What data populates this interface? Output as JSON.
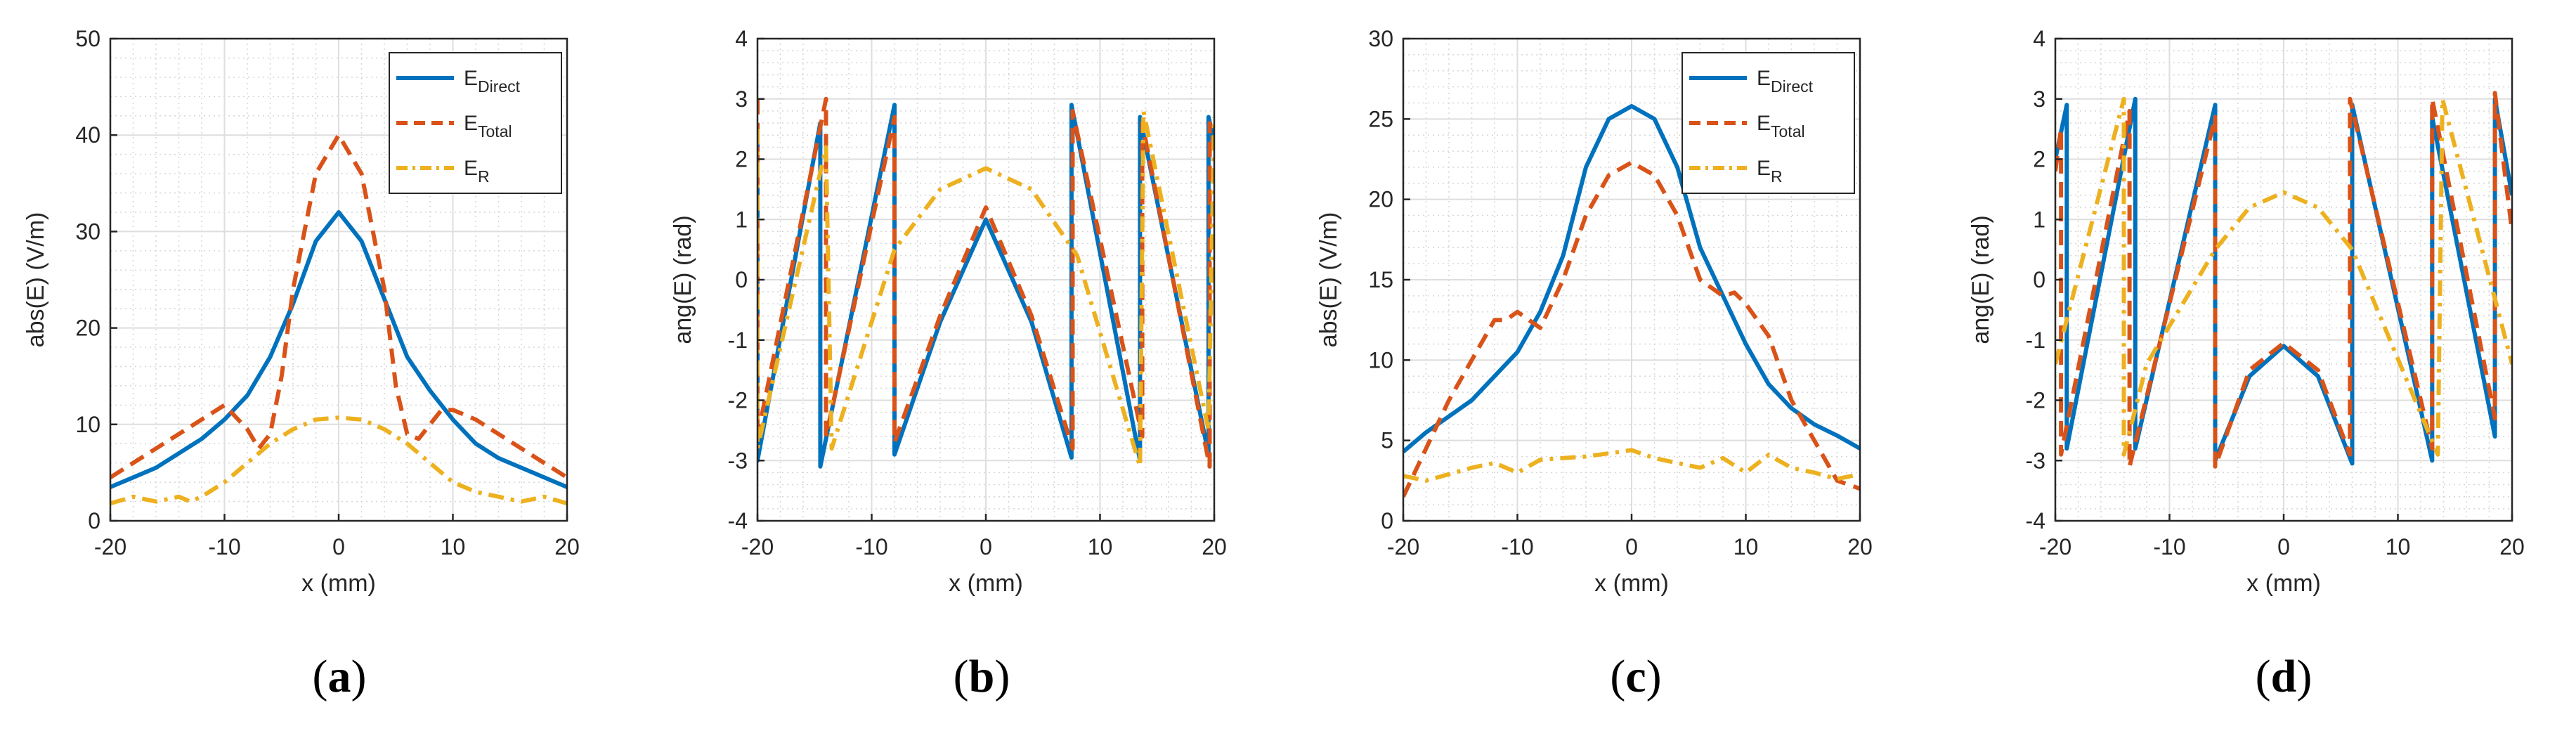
{
  "colors": {
    "direct": "#0072BD",
    "total": "#D95319",
    "r": "#EDB120"
  },
  "panel_labels": [
    "a",
    "b",
    "c",
    "d"
  ],
  "chart_data": [
    {
      "type": "line",
      "panel": "a",
      "xlabel": "x (mm)",
      "ylabel": "abs(E) (V/m)",
      "xlim": [
        -20,
        20
      ],
      "ylim": [
        0,
        50
      ],
      "xticks": [
        -20,
        -10,
        0,
        10,
        20
      ],
      "yticks": [
        0,
        10,
        20,
        30,
        40,
        50
      ],
      "grid": true,
      "minor_grid": true,
      "legend": {
        "show": true,
        "placement": "top-right"
      },
      "series": [
        {
          "name": "E",
          "sub": "Direct",
          "style": "solid",
          "x": [
            -20,
            -18,
            -16,
            -14,
            -12,
            -10,
            -8,
            -6,
            -4,
            -2,
            0,
            2,
            4,
            6,
            8,
            10,
            12,
            14,
            16,
            18,
            20
          ],
          "y": [
            3.5,
            4.5,
            5.5,
            7,
            8.5,
            10.5,
            13,
            17,
            22.5,
            29,
            32,
            29,
            23,
            17,
            13.5,
            10.5,
            8,
            6.5,
            5.5,
            4.5,
            3.5
          ]
        },
        {
          "name": "E",
          "sub": "Total",
          "style": "dashed",
          "x": [
            -20,
            -18,
            -16,
            -14,
            -12,
            -10,
            -8,
            -7,
            -6,
            -5,
            -4,
            -2,
            0,
            2,
            4,
            5,
            6,
            7,
            8,
            9,
            10,
            12,
            14,
            16,
            18,
            20
          ],
          "y": [
            4.5,
            6,
            7.5,
            9,
            10.5,
            12,
            9.5,
            7.5,
            9,
            15,
            24,
            36,
            40,
            36,
            24,
            14,
            9,
            8.5,
            10,
            11.5,
            11.5,
            10.5,
            9,
            7.5,
            6,
            4.5
          ]
        },
        {
          "name": "E",
          "sub": "R",
          "style": "dashdot",
          "x": [
            -20,
            -18,
            -16,
            -14,
            -13,
            -12,
            -10,
            -8,
            -6,
            -4,
            -2,
            0,
            2,
            4,
            6,
            8,
            10,
            12,
            14,
            16,
            18,
            20
          ],
          "y": [
            1.8,
            2.5,
            2,
            2.5,
            2,
            2.5,
            4,
            6,
            8,
            9.5,
            10.5,
            10.7,
            10.5,
            9.5,
            8,
            6,
            4,
            3,
            2.5,
            2,
            2.5,
            1.8
          ]
        }
      ]
    },
    {
      "type": "line",
      "panel": "b",
      "xlabel": "x (mm)",
      "ylabel": "ang(E) (rad)",
      "xlim": [
        -20,
        20
      ],
      "ylim": [
        -4,
        4
      ],
      "xticks": [
        -20,
        -10,
        0,
        10,
        20
      ],
      "yticks": [
        -4,
        -3,
        -2,
        -1,
        0,
        1,
        2,
        3,
        4
      ],
      "grid": true,
      "minor_grid": true,
      "legend": {
        "show": false
      },
      "series": [
        {
          "name": "E",
          "sub": "Direct",
          "style": "solid",
          "x": [
            -20,
            -20,
            -14.5,
            -14.5,
            -8,
            -8,
            -4,
            0,
            4,
            7.5,
            7.5,
            13.5,
            13.5,
            19.5,
            19.5,
            20
          ],
          "y": [
            2.6,
            -3.0,
            2.6,
            -3.1,
            2.9,
            -2.9,
            -0.7,
            1.0,
            -0.7,
            -2.95,
            2.9,
            -3.0,
            2.7,
            -2.9,
            2.7,
            2.3
          ]
        },
        {
          "name": "E",
          "sub": "Total",
          "style": "dashed",
          "x": [
            -20,
            -20,
            -14,
            -14,
            -8,
            -8,
            -4,
            0,
            4,
            7.6,
            7.6,
            13.7,
            13.7,
            19.6,
            19.6,
            20
          ],
          "y": [
            3.0,
            -2.6,
            3.0,
            -2.6,
            2.7,
            -2.7,
            -0.6,
            1.2,
            -0.6,
            -2.8,
            2.8,
            -2.6,
            2.6,
            -3.1,
            2.6,
            2.2
          ]
        },
        {
          "name": "E",
          "sub": "R",
          "style": "dashdot",
          "x": [
            -20,
            -20,
            -14,
            -13.5,
            -8,
            -4,
            0,
            4,
            8,
            13.5,
            13.8,
            19.5,
            20
          ],
          "y": [
            2.5,
            -2.8,
            2.2,
            -2.8,
            0.5,
            1.5,
            1.85,
            1.5,
            0.4,
            -3.1,
            2.8,
            -2.5,
            2.7
          ]
        }
      ]
    },
    {
      "type": "line",
      "panel": "c",
      "xlabel": "x (mm)",
      "ylabel": "abs(E) (V/m)",
      "xlim": [
        -20,
        20
      ],
      "ylim": [
        0,
        30
      ],
      "xticks": [
        -20,
        -10,
        0,
        10,
        20
      ],
      "yticks": [
        0,
        5,
        10,
        15,
        20,
        25,
        30
      ],
      "grid": true,
      "minor_grid": true,
      "legend": {
        "show": true,
        "placement": "top-right"
      },
      "series": [
        {
          "name": "E",
          "sub": "Direct",
          "style": "solid",
          "x": [
            -20,
            -18,
            -16,
            -14,
            -12,
            -10,
            -8,
            -6,
            -4,
            -2,
            0,
            2,
            4,
            6,
            8,
            10,
            12,
            14,
            16,
            18,
            20
          ],
          "y": [
            4.3,
            5.5,
            6.5,
            7.5,
            9,
            10.5,
            13,
            16.5,
            22,
            25,
            25.8,
            25,
            22,
            17,
            14,
            11,
            8.5,
            7,
            6,
            5.3,
            4.5
          ]
        },
        {
          "name": "E",
          "sub": "Total",
          "style": "dashed",
          "x": [
            -20,
            -18,
            -16,
            -14,
            -12,
            -11,
            -10,
            -9,
            -8,
            -6,
            -4,
            -2,
            0,
            2,
            4,
            6,
            8,
            9,
            10,
            12,
            14,
            16,
            18,
            20
          ],
          "y": [
            1.5,
            4.5,
            7.5,
            10,
            12.5,
            12.5,
            13,
            12.5,
            12,
            15,
            19,
            21.5,
            22.3,
            21.5,
            19,
            15,
            14,
            14.2,
            13.5,
            11.5,
            7.5,
            5,
            2.5,
            2
          ]
        },
        {
          "name": "E",
          "sub": "R",
          "style": "dashdot",
          "x": [
            -20,
            -18,
            -16,
            -14,
            -12,
            -10,
            -8,
            -6,
            -4,
            -2,
            0,
            2,
            4,
            6,
            8,
            10,
            12,
            14,
            16,
            18,
            20
          ],
          "y": [
            2.8,
            2.5,
            2.9,
            3.3,
            3.6,
            3,
            3.8,
            3.9,
            4,
            4.2,
            4.4,
            3.9,
            3.6,
            3.3,
            3.9,
            3,
            4.1,
            3.3,
            3,
            2.6,
            2.9
          ]
        }
      ]
    },
    {
      "type": "line",
      "panel": "d",
      "xlabel": "x (mm)",
      "ylabel": "ang(E) (rad)",
      "xlim": [
        -20,
        20
      ],
      "ylim": [
        -4,
        4
      ],
      "xticks": [
        -20,
        -10,
        0,
        10,
        20
      ],
      "yticks": [
        -4,
        -3,
        -2,
        -1,
        0,
        1,
        2,
        3,
        4
      ],
      "grid": true,
      "minor_grid": true,
      "legend": {
        "show": false
      },
      "series": [
        {
          "name": "E",
          "sub": "Direct",
          "style": "solid",
          "x": [
            -20,
            -19,
            -19,
            -13,
            -13,
            -6,
            -6,
            -3,
            0,
            3,
            6,
            6,
            13,
            13,
            18.5,
            18.5,
            20
          ],
          "y": [
            2.0,
            2.9,
            -2.8,
            3.0,
            -2.8,
            2.9,
            -3.0,
            -1.6,
            -1.1,
            -1.6,
            -3.05,
            2.9,
            -3.0,
            2.7,
            -2.6,
            3.0,
            1.4
          ]
        },
        {
          "name": "E",
          "sub": "Total",
          "style": "dashed",
          "x": [
            -20,
            -19.5,
            -19.5,
            -13.5,
            -13.5,
            -6,
            -6,
            -3,
            0,
            3,
            5.8,
            5.8,
            13,
            13,
            18.5,
            18.5,
            20
          ],
          "y": [
            1.8,
            2.5,
            -2.9,
            2.8,
            -3.1,
            2.7,
            -3.1,
            -1.5,
            -1.05,
            -1.5,
            -2.9,
            3.0,
            -2.8,
            3.0,
            -2.3,
            3.1,
            0.8
          ]
        },
        {
          "name": "E",
          "sub": "R",
          "style": "dashdot",
          "x": [
            -20,
            -14,
            -14,
            -12,
            -6,
            -3,
            0,
            3,
            6,
            13.5,
            13.9,
            20
          ],
          "y": [
            -1.4,
            3.0,
            -2.9,
            -1.4,
            0.5,
            1.2,
            1.45,
            1.2,
            0.5,
            -2.9,
            3.0,
            -1.4
          ]
        }
      ]
    }
  ]
}
